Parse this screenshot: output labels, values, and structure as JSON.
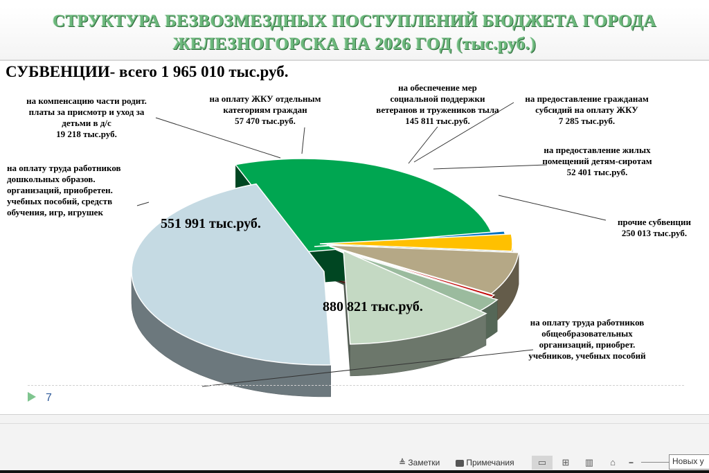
{
  "header": {
    "title_line1": "СТРУКТУРА БЕЗВОЗМЕЗДНЫХ ПОСТУПЛЕНИЙ БЮДЖЕТА ГОРОДА",
    "title_line2": "ЖЕЛЕЗНОГОРСКА  НА 2026 ГОД (тыс.руб.)",
    "subtitle": "СУБВЕНЦИИ- всего 1 965 010 тыс.руб."
  },
  "chart_data": {
    "type": "pie",
    "title": "СУБВЕНЦИИ- всего 1 965 010 тыс.руб.",
    "unit": "тыс.руб.",
    "total": 1965010,
    "slices": [
      {
        "label": "на оплату труда работников общеобразовательных организаций, приобрет. учебников, учебных пособий",
        "value": 880821,
        "value_text": "880 821 тыс.руб.",
        "color": "#c5dae3"
      },
      {
        "label": "на оплату труда работников дошкольных образов. организаций, приобретен. учебных пособий, средств обучения, игр, игрушек",
        "value": 551991,
        "value_text": "551 991 тыс.руб.",
        "color": "#00a651"
      },
      {
        "label": "на компенсацию части родит. платы за присмотр и уход за детьми в д/с",
        "value": 19218,
        "value_text": "19 218 тыс.руб.",
        "color": "#0070c0"
      },
      {
        "label": "на оплату ЖКУ отдельным категориям граждан",
        "value": 57470,
        "value_text": "57 470 тыс.руб.",
        "color": "#ffc000"
      },
      {
        "label": "на обеспечение мер социальной поддержки ветеранов и тружеников тыла",
        "value": 145811,
        "value_text": "145 811 тыс.руб.",
        "color": "#b5a886"
      },
      {
        "label": "на предоставление гражданам субсидий на оплату ЖКУ",
        "value": 7285,
        "value_text": "7 285 тыс.руб.",
        "color": "#c00000"
      },
      {
        "label": "на предоставление жилых помещений детям-сиротам",
        "value": 52401,
        "value_text": "52 401 тыс.руб.",
        "color": "#9bbb9e"
      },
      {
        "label": "прочие субвенции",
        "value": 250013,
        "value_text": "250 013 тыс.руб.",
        "color": "#c4d9c3"
      }
    ]
  },
  "labels": {
    "kompensaciya": [
      "на компенсацию части родит.",
      "платы за присмотр и уход за",
      "детьми в д/с",
      "19 218 тыс.руб."
    ],
    "zhku": [
      "на оплату ЖКУ отдельным",
      "категориям граждан",
      "57 470 тыс.руб."
    ],
    "veterany": [
      "на обеспечение мер",
      "социальной поддержки",
      "ветеранов и тружеников тыла",
      "145 811 тыс.руб."
    ],
    "subsidii": [
      "на предоставление гражданам",
      "субсидий на оплату ЖКУ",
      "7 285 тыс.руб."
    ],
    "siroty": [
      "на предоставление жилых",
      "помещений детям-сиротам",
      "52 401 тыс.руб."
    ],
    "prochie": [
      "прочие субвенции",
      "250 013 тыс.руб."
    ],
    "doshkol": [
      "на оплату труда работников",
      "дошкольных образов.",
      "организаций, приобретен.",
      "учебных пособий, средств",
      "обучения, игр, игрушек"
    ],
    "obshcheobr": [
      "на оплату труда работников",
      "общеобразовательных",
      "организаций, приобрет.",
      "учебников, учебных пособий"
    ],
    "big_doshkol": "551 991 тыс.руб.",
    "big_obshcheobr": "880 821 тыс.руб."
  },
  "slide": {
    "page_number": "7"
  },
  "statusbar": {
    "notes_label": "Заметки",
    "comments_label": "Примечания",
    "new_input_text": "Новых у"
  }
}
